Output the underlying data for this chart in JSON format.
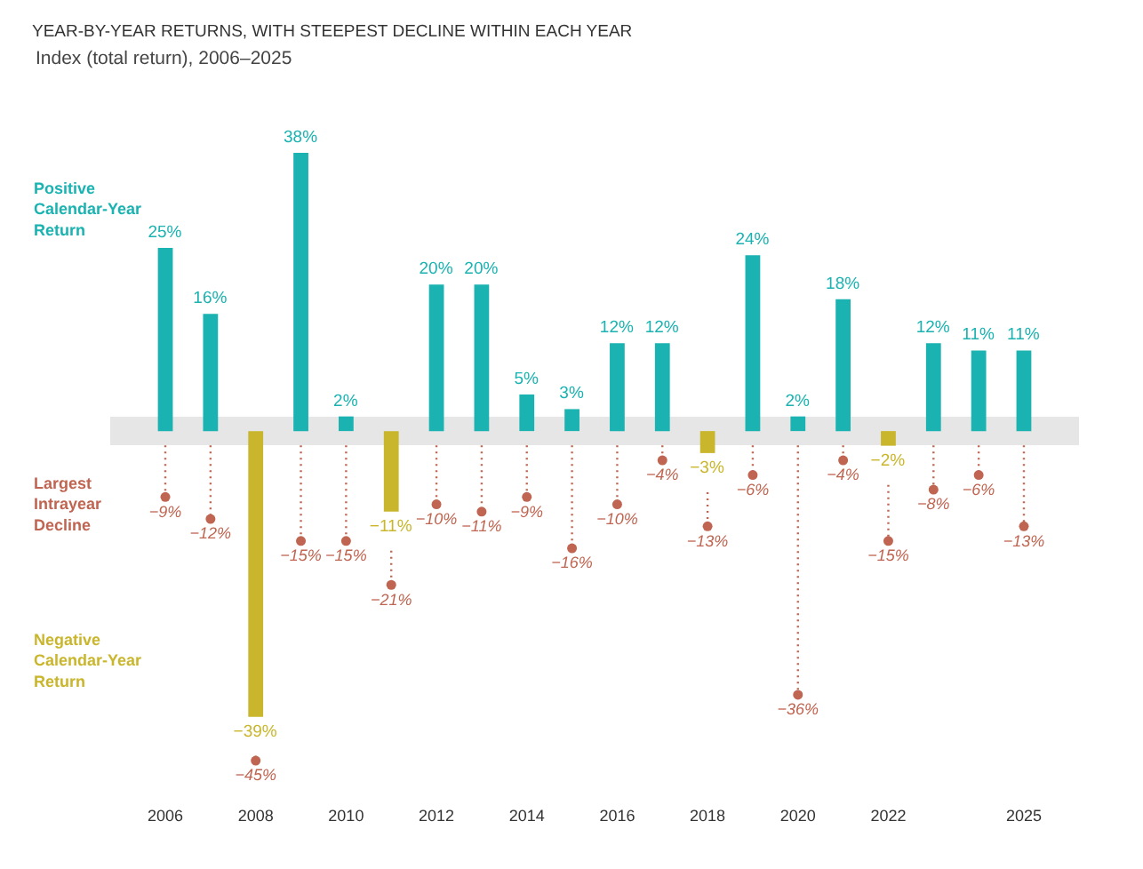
{
  "chart_data": {
    "type": "bar",
    "title": "YEAR-BY-YEAR RETURNS, WITH STEEPEST DECLINE WITHIN EACH YEAR",
    "subtitle": "Index (total return), 2006–2025",
    "categories": [
      "2006",
      null,
      "2008",
      null,
      "2010",
      null,
      "2012",
      null,
      "2014",
      null,
      "2016",
      null,
      "2018",
      null,
      "2020",
      null,
      "2022",
      null,
      null,
      "2025"
    ],
    "series": [
      {
        "name": "Positive Calendar-Year Return",
        "color": "#1ab3b1",
        "values": [
          25,
          16,
          null,
          38,
          2,
          null,
          20,
          20,
          5,
          3,
          12,
          12,
          null,
          24,
          2,
          18,
          null,
          12,
          11,
          11
        ],
        "value_labels": [
          "25%",
          "16%",
          null,
          "38%",
          "2%",
          null,
          "20%",
          "20%",
          "5%",
          "3%",
          "12%",
          "12%",
          null,
          "24%",
          "2%",
          "18%",
          null,
          "12%",
          "11%",
          "11%"
        ]
      },
      {
        "name": "Largest Intrayear Decline",
        "type": "lollipop",
        "color": "#bf6551",
        "values": [
          -9,
          -12,
          -45,
          -15,
          -15,
          -21,
          -10,
          -11,
          -9,
          -16,
          -10,
          -4,
          -13,
          -6,
          -36,
          -4,
          -15,
          -8,
          -6,
          -13
        ],
        "value_labels": [
          "−9%",
          "−12%",
          "−45%",
          "−15%",
          "−15%",
          "−21%",
          "−10%",
          "−11%",
          "−9%",
          "−16%",
          "−10%",
          "−4%",
          "−13%",
          "−6%",
          "−36%",
          "−4%",
          "−15%",
          "−8%",
          "−6%",
          "−13%"
        ]
      },
      {
        "name": "Negative Calendar-Year Return",
        "color": "#c9b62c",
        "values": [
          null,
          null,
          -39,
          null,
          null,
          -11,
          null,
          null,
          null,
          null,
          null,
          null,
          -3,
          null,
          null,
          null,
          -2,
          null,
          null,
          null
        ],
        "value_labels": [
          null,
          null,
          "−39%",
          null,
          null,
          "−11%",
          null,
          null,
          null,
          null,
          null,
          null,
          "−3%",
          null,
          null,
          null,
          "−2%",
          null,
          null,
          null
        ]
      }
    ],
    "marker": "circle",
    "line_style": "dotted",
    "legend": false
  }
}
